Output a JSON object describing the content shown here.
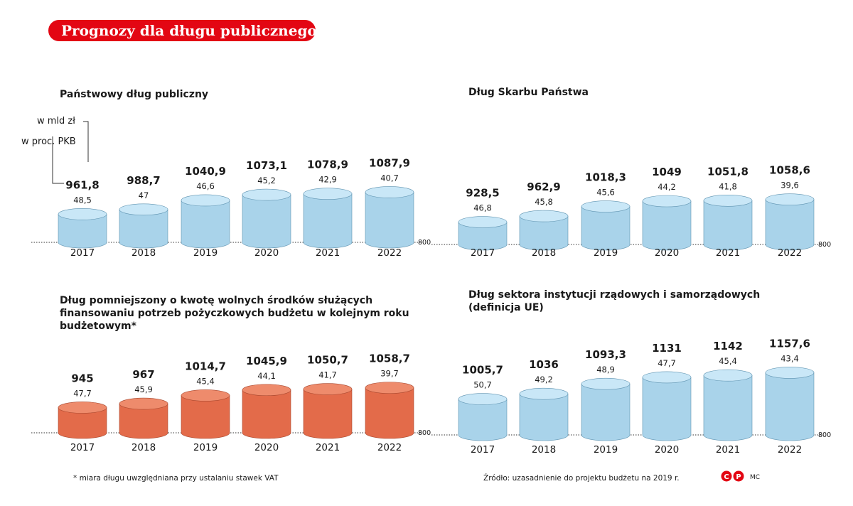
{
  "header": {
    "title": "Prognozy dla długu publicznego"
  },
  "legend": {
    "unit_value": "w mld zł",
    "unit_pct": "w proc. PKB"
  },
  "footnote": "* miara długu uwzględniana   przy ustalaniu stawek VAT",
  "source": "Źródło: uzasadnienie do projektu budżetu na 2019 r.",
  "logo_text": "MC",
  "colors": {
    "blue": "#a9d3ea",
    "blue_top": "#c9e7f7",
    "orange": "#e36b4a",
    "orange_top": "#ee8b6c",
    "accent": "#e30613"
  },
  "chart_data": [
    {
      "type": "bar",
      "title_lines": [
        "Państwowy dług publiczny"
      ],
      "categories": [
        "2017",
        "2018",
        "2019",
        "2020",
        "2021",
        "2022"
      ],
      "value_labels": [
        "961,8",
        "988,7",
        "1040,9",
        "1073,1",
        "1078,9",
        "1087,9"
      ],
      "pct_labels": [
        "48,5",
        "47",
        "46,6",
        "45,2",
        "42,9",
        "40,7"
      ],
      "values": [
        961.8,
        988.7,
        1040.9,
        1073.1,
        1078.9,
        1087.9
      ],
      "pct_of_gdp": [
        48.5,
        47,
        46.6,
        45.2,
        42.9,
        40.7
      ],
      "baseline_label": "800",
      "ylim": [
        800,
        1160
      ],
      "color": "blue"
    },
    {
      "type": "bar",
      "title_lines": [
        "Dług Skarbu Państwa"
      ],
      "categories": [
        "2017",
        "2018",
        "2019",
        "2020",
        "2021",
        "2022"
      ],
      "value_labels": [
        "928,5",
        "962,9",
        "1018,3",
        "1049",
        "1051,8",
        "1058,6"
      ],
      "pct_labels": [
        "46,8",
        "45,8",
        "45,6",
        "44,2",
        "41,8",
        "39,6"
      ],
      "values": [
        928.5,
        962.9,
        1018.3,
        1049,
        1051.8,
        1058.6
      ],
      "pct_of_gdp": [
        46.8,
        45.8,
        45.6,
        44.2,
        41.8,
        39.6
      ],
      "baseline_label": "800",
      "ylim": [
        800,
        1160
      ],
      "color": "blue"
    },
    {
      "type": "bar",
      "title_lines": [
        "Dług pomniejszony o kwotę wolnych środków służących",
        "finansowaniu potrzeb pożyczkowych budżetu w kolejnym roku",
        "budżetowym*"
      ],
      "categories": [
        "2017",
        "2018",
        "2019",
        "2020",
        "2021",
        "2022"
      ],
      "value_labels": [
        "945",
        "967",
        "1014,7",
        "1045,9",
        "1050,7",
        "1058,7"
      ],
      "pct_labels": [
        "47,7",
        "45,9",
        "45,4",
        "44,1",
        "41,7",
        "39,7"
      ],
      "values": [
        945,
        967,
        1014.7,
        1045.9,
        1050.7,
        1058.7
      ],
      "pct_of_gdp": [
        47.7,
        45.9,
        45.4,
        44.1,
        41.7,
        39.7
      ],
      "baseline_label": "800",
      "ylim": [
        800,
        1160
      ],
      "color": "orange"
    },
    {
      "type": "bar",
      "title_lines": [
        "Dług sektora instytucji rządowych i samorządowych",
        "(definicja UE)"
      ],
      "categories": [
        "2017",
        "2018",
        "2019",
        "2020",
        "2021",
        "2022"
      ],
      "value_labels": [
        "1005,7",
        "1036",
        "1093,3",
        "1131",
        "1142",
        "1157,6"
      ],
      "pct_labels": [
        "50,7",
        "49,2",
        "48,9",
        "47,7",
        "45,4",
        "43,4"
      ],
      "values": [
        1005.7,
        1036,
        1093.3,
        1131,
        1142,
        1157.6
      ],
      "pct_of_gdp": [
        50.7,
        49.2,
        48.9,
        47.7,
        45.4,
        43.4
      ],
      "baseline_label": "800",
      "ylim": [
        800,
        1160
      ],
      "color": "blue"
    }
  ]
}
